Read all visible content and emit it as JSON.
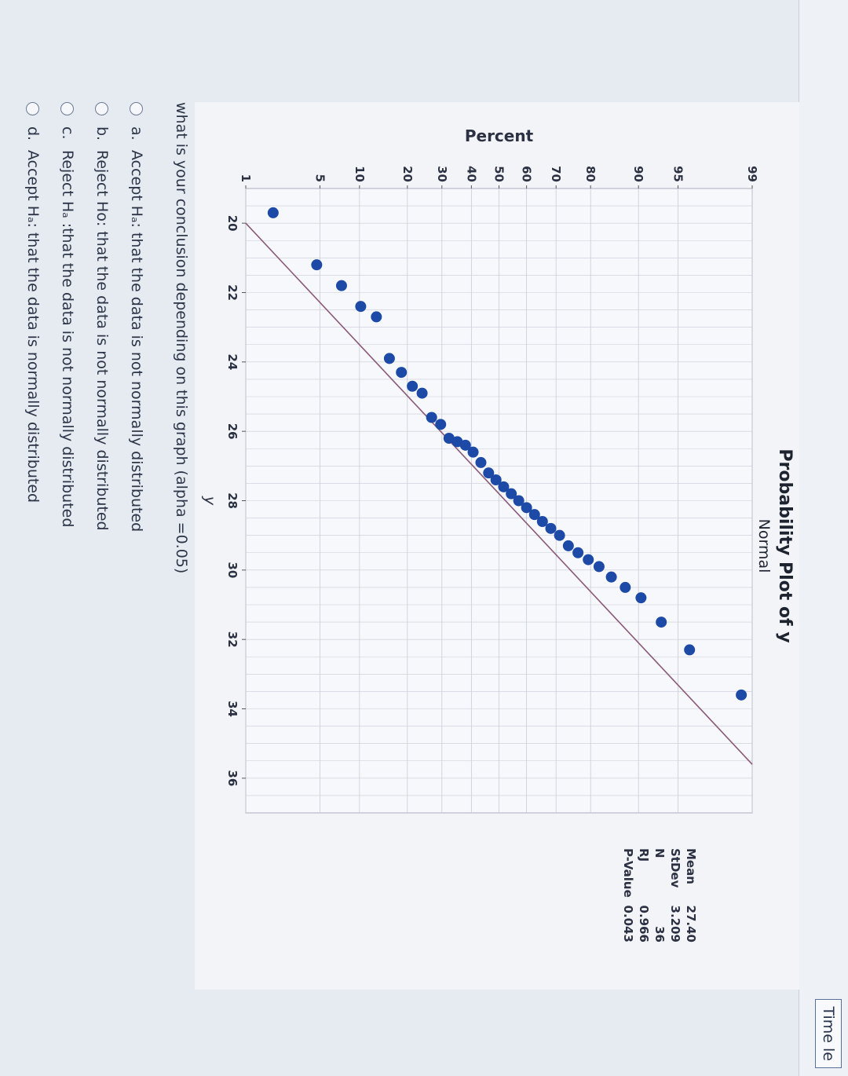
{
  "header": {
    "timer_label": "Time le"
  },
  "chart_data": {
    "type": "scatter",
    "title": "Probability Plot of y",
    "subtitle": "Normal",
    "xlabel": "y",
    "ylabel": "Percent",
    "xlim": [
      19,
      37
    ],
    "x_ticks": [
      20,
      22,
      24,
      26,
      28,
      30,
      32,
      34,
      36
    ],
    "y_ticks": [
      1,
      5,
      10,
      20,
      30,
      40,
      50,
      60,
      70,
      80,
      90,
      95,
      99
    ],
    "grid": true,
    "fit_line": {
      "x": [
        20.0,
        35.6
      ],
      "percent": [
        1,
        99
      ]
    },
    "points": [
      {
        "x": 19.7,
        "y": 1.9
      },
      {
        "x": 21.2,
        "y": 4.7
      },
      {
        "x": 21.8,
        "y": 7.4
      },
      {
        "x": 22.4,
        "y": 10.2
      },
      {
        "x": 22.7,
        "y": 13.0
      },
      {
        "x": 23.9,
        "y": 15.7
      },
      {
        "x": 24.3,
        "y": 18.5
      },
      {
        "x": 24.7,
        "y": 21.3
      },
      {
        "x": 24.9,
        "y": 24.0
      },
      {
        "x": 25.6,
        "y": 26.8
      },
      {
        "x": 25.8,
        "y": 29.6
      },
      {
        "x": 26.2,
        "y": 32.3
      },
      {
        "x": 26.3,
        "y": 35.1
      },
      {
        "x": 26.4,
        "y": 37.9
      },
      {
        "x": 26.6,
        "y": 40.6
      },
      {
        "x": 26.9,
        "y": 43.4
      },
      {
        "x": 27.2,
        "y": 46.2
      },
      {
        "x": 27.4,
        "y": 48.9
      },
      {
        "x": 27.6,
        "y": 51.7
      },
      {
        "x": 27.8,
        "y": 54.5
      },
      {
        "x": 28.0,
        "y": 57.2
      },
      {
        "x": 28.2,
        "y": 60.0
      },
      {
        "x": 28.4,
        "y": 62.8
      },
      {
        "x": 28.6,
        "y": 65.5
      },
      {
        "x": 28.8,
        "y": 68.3
      },
      {
        "x": 29.0,
        "y": 71.1
      },
      {
        "x": 29.3,
        "y": 73.8
      },
      {
        "x": 29.5,
        "y": 76.6
      },
      {
        "x": 29.7,
        "y": 79.4
      },
      {
        "x": 29.9,
        "y": 82.1
      },
      {
        "x": 30.2,
        "y": 84.9
      },
      {
        "x": 30.5,
        "y": 87.7
      },
      {
        "x": 30.8,
        "y": 90.4
      },
      {
        "x": 31.5,
        "y": 93.2
      },
      {
        "x": 32.3,
        "y": 96.0
      },
      {
        "x": 33.6,
        "y": 98.7
      }
    ],
    "stats": [
      {
        "label": "Mean",
        "value": "27.40"
      },
      {
        "label": "StDev",
        "value": "3.209"
      },
      {
        "label": "N",
        "value": "36"
      },
      {
        "label": "RJ",
        "value": "0.966"
      },
      {
        "label": "P-Value",
        "value": "0.043"
      }
    ],
    "colors": {
      "points": "#1c4aa6",
      "fit_line": "#8a5a78",
      "grid": "#c8ccd8"
    }
  },
  "question": {
    "prompt": "what is your conclusion depending on this graph (alpha =0.05)",
    "options": [
      {
        "letter": "a.",
        "text": "Accept Hₐ: that the data is not normally distributed"
      },
      {
        "letter": "b.",
        "text": "Reject Ho: that the data is not normally distributed"
      },
      {
        "letter": "c.",
        "text": "Reject Hₐ :that the data is not normally distributed"
      },
      {
        "letter": "d.",
        "text": "Accept Hₐ: that the data is normally distributed"
      }
    ]
  }
}
